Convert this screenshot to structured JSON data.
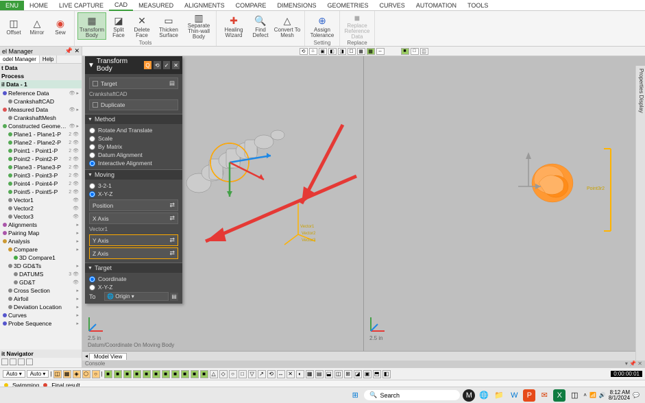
{
  "ribbon": {
    "menu": "ENU",
    "tabs": [
      "HOME",
      "LIVE CAPTURE",
      "CAD",
      "MEASURED",
      "ALIGNMENTS",
      "COMPARE",
      "DIMENSIONS",
      "GEOMETRIES",
      "CURVES",
      "AUTOMATION",
      "TOOLS"
    ],
    "groups": {
      "g1": [
        {
          "label": "Offset",
          "icon": "◫"
        },
        {
          "label": "Mirror",
          "icon": "△"
        },
        {
          "label": "Sew",
          "icon": "◉"
        }
      ],
      "g2": [
        {
          "label": "Transform Body",
          "icon": "▦",
          "hl": true
        },
        {
          "label": "Split Face",
          "icon": "◪"
        },
        {
          "label": "Delete Face",
          "icon": "✕"
        },
        {
          "label": "Thicken Surface",
          "icon": "▭"
        },
        {
          "label": "Separate Thin-wall Body",
          "icon": "▥"
        }
      ],
      "g2_label": "Tools",
      "g3": [
        {
          "label": "Healing Wizard",
          "icon": "✚",
          "color": "#d43"
        },
        {
          "label": "Find Defect",
          "icon": "🔍"
        },
        {
          "label": "Convert To Mesh",
          "icon": "△"
        }
      ],
      "g4": [
        {
          "label": "Assign Tolerance",
          "icon": "⊕",
          "color": "#36c"
        }
      ],
      "g4_label": "Setting",
      "g5": [
        {
          "label": "Replace Reference Data",
          "icon": "■",
          "faded": true
        }
      ],
      "g5_label": "Replace"
    }
  },
  "modelManager": {
    "title": "el Manager",
    "tabs": [
      "odel Manager",
      "Help"
    ],
    "sections": {
      "s1": "t Data",
      "s2": "Process",
      "s3": "il Data - 1"
    },
    "tree": [
      {
        "lbl": "Reference Data",
        "d": 0,
        "dot": "#55c",
        "ex": "👁 ▸"
      },
      {
        "lbl": "CrankshaftCAD",
        "d": 1,
        "dot": "#888"
      },
      {
        "lbl": "Measured Data",
        "d": 0,
        "dot": "#d55",
        "ex": "👁 ▸"
      },
      {
        "lbl": "CrankshaftMesh",
        "d": 1,
        "dot": "#888"
      },
      {
        "lbl": "Constructed Geometries",
        "d": 0,
        "dot": "#5a5",
        "ex": "👁 ▸"
      },
      {
        "lbl": "Plane1 - Plane1-P",
        "d": 1,
        "dot": "#5a5",
        "ex": "2 👁"
      },
      {
        "lbl": "Plane2 - Plane2-P",
        "d": 1,
        "dot": "#5a5",
        "ex": "2 👁"
      },
      {
        "lbl": "Point1 - Point1-P",
        "d": 1,
        "dot": "#5a5",
        "ex": "2 👁"
      },
      {
        "lbl": "Point2 - Point2-P",
        "d": 1,
        "dot": "#5a5",
        "ex": "2 👁"
      },
      {
        "lbl": "Plane3 - Plane3-P",
        "d": 1,
        "dot": "#5a5",
        "ex": "2 👁"
      },
      {
        "lbl": "Point3 - Point3-P",
        "d": 1,
        "dot": "#5a5",
        "ex": "2 👁"
      },
      {
        "lbl": "Point4 - Point4-P",
        "d": 1,
        "dot": "#5a5",
        "ex": "2 👁"
      },
      {
        "lbl": "Point5 - Point5-P",
        "d": 1,
        "dot": "#5a5",
        "ex": "2 👁"
      },
      {
        "lbl": "Vector1",
        "d": 1,
        "dot": "#888",
        "ex": "👁"
      },
      {
        "lbl": "Vector2",
        "d": 1,
        "dot": "#888",
        "ex": "👁"
      },
      {
        "lbl": "Vector3",
        "d": 1,
        "dot": "#888",
        "ex": "👁"
      },
      {
        "lbl": "Alignments",
        "d": 0,
        "dot": "#a5a",
        "ex": "▸"
      },
      {
        "lbl": "Pairing Map",
        "d": 0,
        "dot": "#a5a",
        "ex": "▸"
      },
      {
        "lbl": "Analysis",
        "d": 0,
        "dot": "#c93",
        "ex": "▸"
      },
      {
        "lbl": "Compare",
        "d": 1,
        "dot": "#c93",
        "ex": "▸"
      },
      {
        "lbl": "3D Compare1",
        "d": 2,
        "dot": "#4a4"
      },
      {
        "lbl": "3D GD&Ts",
        "d": 1,
        "dot": "#888",
        "ex": "▸"
      },
      {
        "lbl": "DATUMS",
        "d": 2,
        "dot": "#888",
        "ex": "3 👁"
      },
      {
        "lbl": "GD&T",
        "d": 2,
        "dot": "#888",
        "ex": "👁"
      },
      {
        "lbl": "Cross Section",
        "d": 1,
        "dot": "#888",
        "ex": "▸"
      },
      {
        "lbl": "Airfoil",
        "d": 1,
        "dot": "#888",
        "ex": "▸"
      },
      {
        "lbl": "Deviation Location",
        "d": 1,
        "dot": "#888",
        "ex": "▸"
      },
      {
        "lbl": "Curves",
        "d": 0,
        "dot": "#55c",
        "ex": "▸"
      },
      {
        "lbl": "Probe Sequence",
        "d": 0,
        "dot": "#55c",
        "ex": "▸"
      }
    ],
    "navigator": "it Navigator"
  },
  "transformPanel": {
    "title": "Transform Body",
    "targetBtn": "Target",
    "targetRef": "CrankshaftCAD",
    "duplicate": "Duplicate",
    "method": {
      "title": "Method",
      "opts": [
        "Rotate And Translate",
        "Scale",
        "By Matrix",
        "Datum Alignment",
        "Interactive Alignment"
      ],
      "selected": 4
    },
    "moving": {
      "title": "Moving",
      "radios": [
        "3-2-1",
        "X-Y-Z"
      ],
      "selected": 1,
      "rows": [
        {
          "lbl": "Position",
          "sw": "⇄"
        },
        {
          "lbl": "X Axis",
          "sw": "⇄"
        }
      ],
      "vec": "Vector1",
      "hlRows": [
        {
          "lbl": "Y Axis",
          "sw": "⇄"
        },
        {
          "lbl": "Z Axis",
          "sw": "⇄"
        }
      ]
    },
    "target": {
      "title": "Target",
      "radios": [
        "Coordinate",
        "X-Y-Z"
      ],
      "to": "To",
      "origin": "Origin"
    }
  },
  "viewport": {
    "tabs_bottom": "Model View",
    "console": "Console",
    "scaleL": "2.5 in",
    "scaleR": "2.5 in",
    "captionL": "Datum/Coordinate On Moving Body",
    "axisLabelR": "Point3r2"
  },
  "rightDock": "Properties  Display",
  "bottom": {
    "auto1": "Auto",
    "auto2": "Auto",
    "timer": "0:00:00:01"
  },
  "status": {
    "swimming": "Swimming",
    "final": "Final result"
  },
  "taskbar": {
    "search": "Search",
    "time": "8:12 AM",
    "date": "8/1/2024"
  },
  "colors": {
    "mesh": "#ff9933",
    "arrow": "#e53935",
    "yaxis": "#ffb300",
    "zaxis": "#43a047",
    "xaxis": "#e53935",
    "blueaxis": "#1e88e5"
  }
}
